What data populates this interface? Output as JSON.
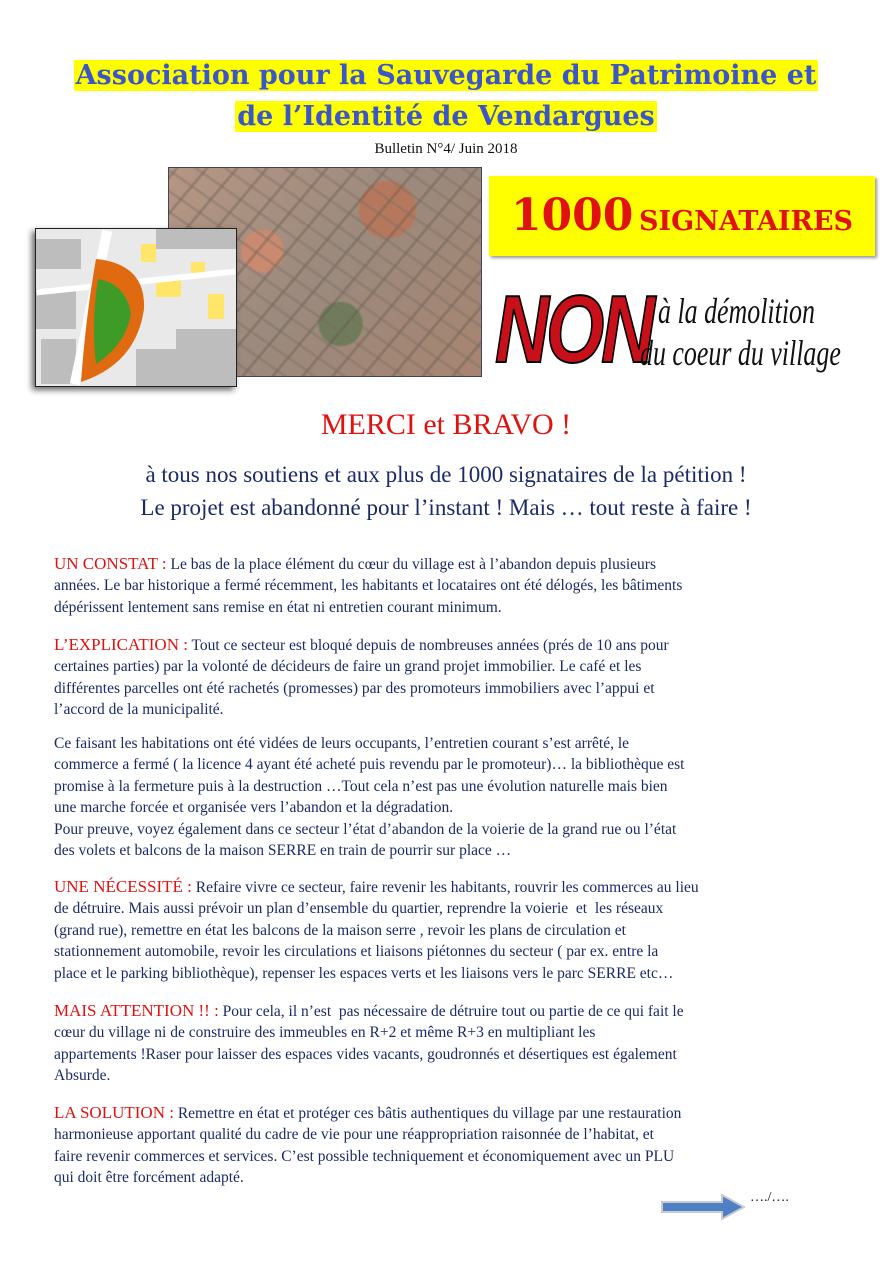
{
  "header": {
    "title_lines": [
      "Association pour la Sauvegarde du Patrimoine et",
      "de l’Identité de Vendargues"
    ],
    "bulletin": "Bulletin N°4/ Juin 2018"
  },
  "banner": {
    "count": "1000",
    "count_label": "SIGNATAIRES",
    "non": "NON",
    "non_lines": [
      "à la démolition",
      "du coeur du village"
    ]
  },
  "colors": {
    "title_blue": "#3a56c8",
    "highlight": "#ffff00",
    "accent_red": "#e0120f",
    "text_navy": "#1b2a66"
  },
  "thanks": {
    "headline": "MERCI et BRAVO !",
    "lines": [
      "à tous nos soutiens et aux plus de 1000 signataires de la pétition !",
      "Le projet est abandonné pour l’instant ! Mais … tout reste à faire !"
    ]
  },
  "sections": [
    {
      "label": "UN CONSTAT :",
      "lines": [
        " Le bas de la place élément du cœur du village est à l’abandon depuis plusieurs",
        "années. Le bar historique a fermé récemment, les habitants et locataires ont été délogés, les bâtiments",
        "dépérissent lentement sans remise en état ni entretien courant minimum."
      ]
    },
    {
      "label": "L’EXPLICATION :",
      "lines": [
        " Tout ce secteur est bloqué depuis de nombreuses années (prés de 10 ans pour",
        "certaines parties) par la volonté de décideurs de faire un grand projet immobilier. Le café et les",
        "différentes parcelles ont été rachetés (promesses) par des promoteurs immobiliers avec l’appui et",
        "l’accord de la municipalité."
      ]
    },
    {
      "label": "",
      "lines": [
        "Ce faisant les habitations ont été vidées de leurs occupants, l’entretien courant s’est arrêté, le",
        "commerce a fermé ( la licence 4 ayant été acheté puis revendu par le promoteur)… la bibliothèque est",
        "promise à la fermeture puis à la destruction …Tout cela n’est pas une évolution naturelle mais bien",
        "une marche forcée et organisée vers l’abandon et la dégradation.",
        "Pour preuve, voyez également dans ce secteur l’état d’abandon de la voierie de la grand rue ou l’état",
        "des volets et balcons de la maison SERRE en train de pourrir sur place …"
      ]
    },
    {
      "label": "UNE NÉCESSITÉ :",
      "lines": [
        " Refaire vivre ce secteur, faire revenir les habitants, rouvrir les commerces au lieu",
        "de détruire. Mais aussi prévoir un plan d’ensemble du quartier, reprendre la voierie  et  les réseaux",
        "(grand rue), remettre en état les balcons de la maison serre , revoir les plans de circulation et",
        "stationnement automobile, revoir les circulations et liaisons piétonnes du secteur ( par ex. entre la",
        "place et le parking bibliothèque), repenser les espaces verts et les liaisons vers le parc SERRE etc…"
      ]
    },
    {
      "label": "MAIS ATTENTION !! :",
      "lines": [
        " Pour cela, il n’est  pas nécessaire de détruire tout ou partie de ce qui fait le",
        "cœur du village ni de construire des immeubles en R+2 et même R+3 en multipliant les",
        "appartements !Raser pour laisser des espaces vides vacants, goudronnés et désertiques est également",
        "Absurde."
      ]
    },
    {
      "label": "LA SOLUTION :",
      "lines": [
        " Remettre en état et protéger ces bâtis authentiques du village par une restauration",
        "harmonieuse apportant qualité du cadre de vie pour une réappropriation raisonnée de l’habitat, et",
        "faire revenir commerces et services. C’est possible techniquement et économiquement avec un PLU",
        "qui doit être forcément adapté."
      ]
    }
  ],
  "footer": {
    "continued": "…./….",
    "arrow_icon": "arrow-right-icon"
  }
}
